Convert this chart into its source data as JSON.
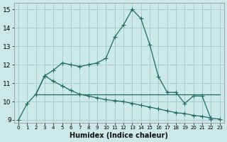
{
  "xlabel": "Humidex (Indice chaleur)",
  "background_color": "#cce9e8",
  "grid_color": "#a8cccc",
  "line_color": "#1e6b65",
  "xlim": [
    -0.5,
    23.5
  ],
  "ylim": [
    8.85,
    15.35
  ],
  "yticks": [
    9,
    10,
    11,
    12,
    13,
    14,
    15
  ],
  "xtick_labels": [
    "0",
    "1",
    "2",
    "3",
    "4",
    "5",
    "6",
    "7",
    "8",
    "9",
    "10",
    "11",
    "12",
    "13",
    "14",
    "15",
    "16",
    "17",
    "18",
    "19",
    "20",
    "21",
    "22",
    "23"
  ],
  "series1_x": [
    0,
    1,
    2,
    3,
    4,
    5,
    6,
    7,
    8,
    9,
    10,
    11,
    12,
    13,
    14,
    15,
    16,
    17,
    18,
    19,
    20,
    21,
    22
  ],
  "series1_y": [
    9.0,
    9.9,
    10.4,
    11.4,
    11.7,
    12.1,
    12.0,
    11.9,
    12.0,
    12.1,
    12.35,
    13.5,
    14.15,
    15.0,
    14.5,
    13.1,
    11.35,
    10.5,
    10.5,
    9.9,
    10.3,
    10.3,
    9.05
  ],
  "series2_x": [
    2,
    3,
    4,
    5,
    6,
    7,
    8,
    9,
    10,
    11,
    12,
    13,
    14,
    15,
    16,
    17,
    18,
    19,
    20,
    21,
    22,
    23
  ],
  "series2_y": [
    10.4,
    11.4,
    11.1,
    10.85,
    10.6,
    10.4,
    10.3,
    10.2,
    10.1,
    10.05,
    10.0,
    9.9,
    9.8,
    9.7,
    9.6,
    9.5,
    9.4,
    9.35,
    9.25,
    9.2,
    9.1,
    9.05
  ],
  "series3_x": [
    2,
    3,
    4,
    5,
    6,
    7,
    8,
    9,
    10,
    11,
    12,
    13,
    14,
    15,
    16,
    17,
    18,
    19,
    20,
    21,
    22,
    23
  ],
  "series3_y": [
    10.4,
    10.4,
    10.4,
    10.4,
    10.4,
    10.4,
    10.4,
    10.4,
    10.4,
    10.4,
    10.4,
    10.4,
    10.4,
    10.4,
    10.4,
    10.4,
    10.4,
    10.4,
    10.4,
    10.4,
    10.4,
    10.4
  ]
}
